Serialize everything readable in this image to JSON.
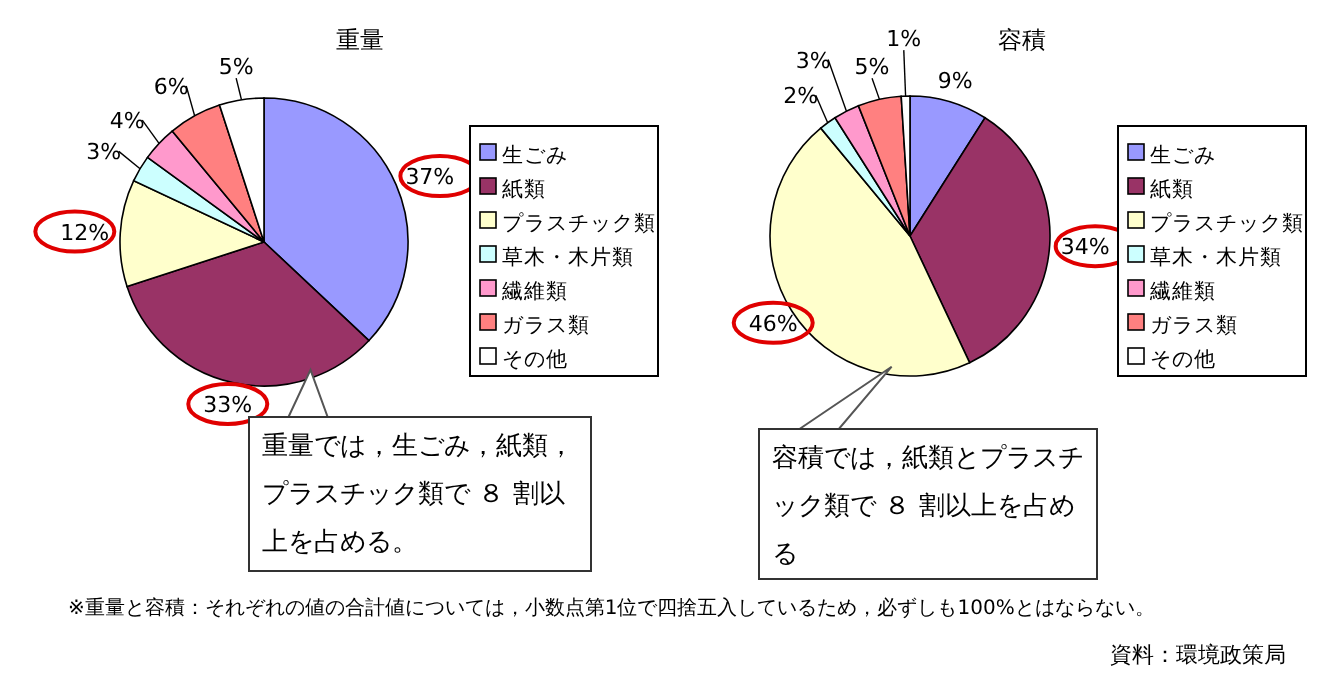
{
  "chart_data": [
    {
      "type": "pie",
      "title": "重量",
      "categories": [
        "生ごみ",
        "紙類",
        "プラスチック類",
        "草木・木片類",
        "繊維類",
        "ガラス類",
        "その他"
      ],
      "values": [
        37,
        33,
        12,
        3,
        4,
        6,
        5
      ],
      "value_labels": [
        "37%",
        "33%",
        "12%",
        "3%",
        "4%",
        "6%",
        "5%"
      ],
      "colors": [
        "#9999ff",
        "#993366",
        "#ffffcc",
        "#ccffff",
        "#ff99cc",
        "#ff8080",
        "#ffffff"
      ],
      "legend": "right",
      "annotations": [
        "重量では，生ごみ，紙類，プラスチック類で ８ 割以上を占める。"
      ]
    },
    {
      "type": "pie",
      "title": "容積",
      "categories": [
        "生ごみ",
        "紙類",
        "プラスチック類",
        "草木・木片類",
        "繊維類",
        "ガラス類",
        "その他"
      ],
      "values": [
        9,
        34,
        46,
        2,
        3,
        5,
        1
      ],
      "value_labels": [
        "9%",
        "34%",
        "46%",
        "2%",
        "3%",
        "5%",
        "1%"
      ],
      "colors": [
        "#9999ff",
        "#993366",
        "#ffffcc",
        "#ccffff",
        "#ff99cc",
        "#ff8080",
        "#ffffff"
      ],
      "legend": "right",
      "annotations": [
        "容積では，紙類とプラスチック類で ８ 割以上を占める",
        "※重量と容積：それぞれの値の合計値については，小数点第1位で四捨五入しているため，必ずしも100%とはならない。",
        "資料：環境政策局"
      ]
    }
  ]
}
